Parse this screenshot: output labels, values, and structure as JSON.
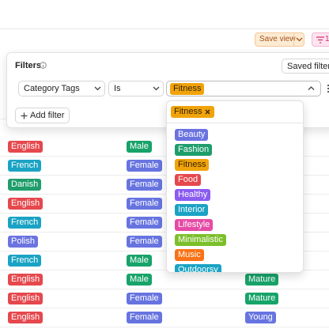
{
  "toolbar": {
    "save_view": "Save view",
    "filter_count": "1"
  },
  "filter_panel": {
    "title": "Filters",
    "saved_filters": "Saved filters",
    "field": "Category Tags",
    "operator": "Is",
    "value_tag": {
      "label": "Fitness",
      "color": "#f0a30a"
    },
    "add_filter": "Add filter"
  },
  "dropdown": {
    "selected": {
      "label": "Fitness",
      "color": "#f0a30a"
    },
    "options": [
      {
        "label": "Beauty",
        "color": "#6b73e0"
      },
      {
        "label": "Fashion",
        "color": "#1f9d6b"
      },
      {
        "label": "Fitness",
        "color": "#f0a30a"
      },
      {
        "label": "Food",
        "color": "#e5484d"
      },
      {
        "label": "Healthy",
        "color": "#8a5cf0"
      },
      {
        "label": "Interior",
        "color": "#1aa3c4"
      },
      {
        "label": "Lifestyle",
        "color": "#e54ba4"
      },
      {
        "label": "Minimalistic",
        "color": "#7cbf2a"
      },
      {
        "label": "Music",
        "color": "#f97316"
      },
      {
        "label": "Outdoorsy",
        "color": "#1aa3c4"
      }
    ]
  },
  "table": {
    "rows": [
      [
        {
          "label": "English",
          "color": "#e5484d"
        },
        {
          "label": "Male",
          "color": "#17a369"
        }
      ],
      [
        {
          "label": "French",
          "color": "#1aa3c4"
        },
        {
          "label": "Female",
          "color": "#6774e0"
        }
      ],
      [
        {
          "label": "Danish",
          "color": "#1f9d6b"
        },
        {
          "label": "Female",
          "color": "#6774e0"
        }
      ],
      [
        {
          "label": "English",
          "color": "#e5484d"
        },
        {
          "label": "Female",
          "color": "#6774e0"
        }
      ],
      [
        {
          "label": "French",
          "color": "#1aa3c4"
        },
        {
          "label": "Female",
          "color": "#6774e0"
        }
      ],
      [
        {
          "label": "Polish",
          "color": "#6b73e0"
        },
        {
          "label": "Female",
          "color": "#6774e0"
        }
      ],
      [
        {
          "label": "French",
          "color": "#1aa3c4"
        },
        {
          "label": "Male",
          "color": "#17a369"
        }
      ],
      [
        {
          "label": "English",
          "color": "#e5484d"
        },
        {
          "label": "Male",
          "color": "#17a369"
        },
        {
          "label": "Mature",
          "color": "#17a369"
        }
      ],
      [
        {
          "label": "English",
          "color": "#e5484d"
        },
        {
          "label": "Female",
          "color": "#6774e0"
        },
        {
          "label": "Mature",
          "color": "#17a369"
        }
      ],
      [
        {
          "label": "English",
          "color": "#e5484d"
        },
        {
          "label": "Female",
          "color": "#6774e0"
        },
        {
          "label": "Young",
          "color": "#6774e0"
        }
      ]
    ]
  }
}
